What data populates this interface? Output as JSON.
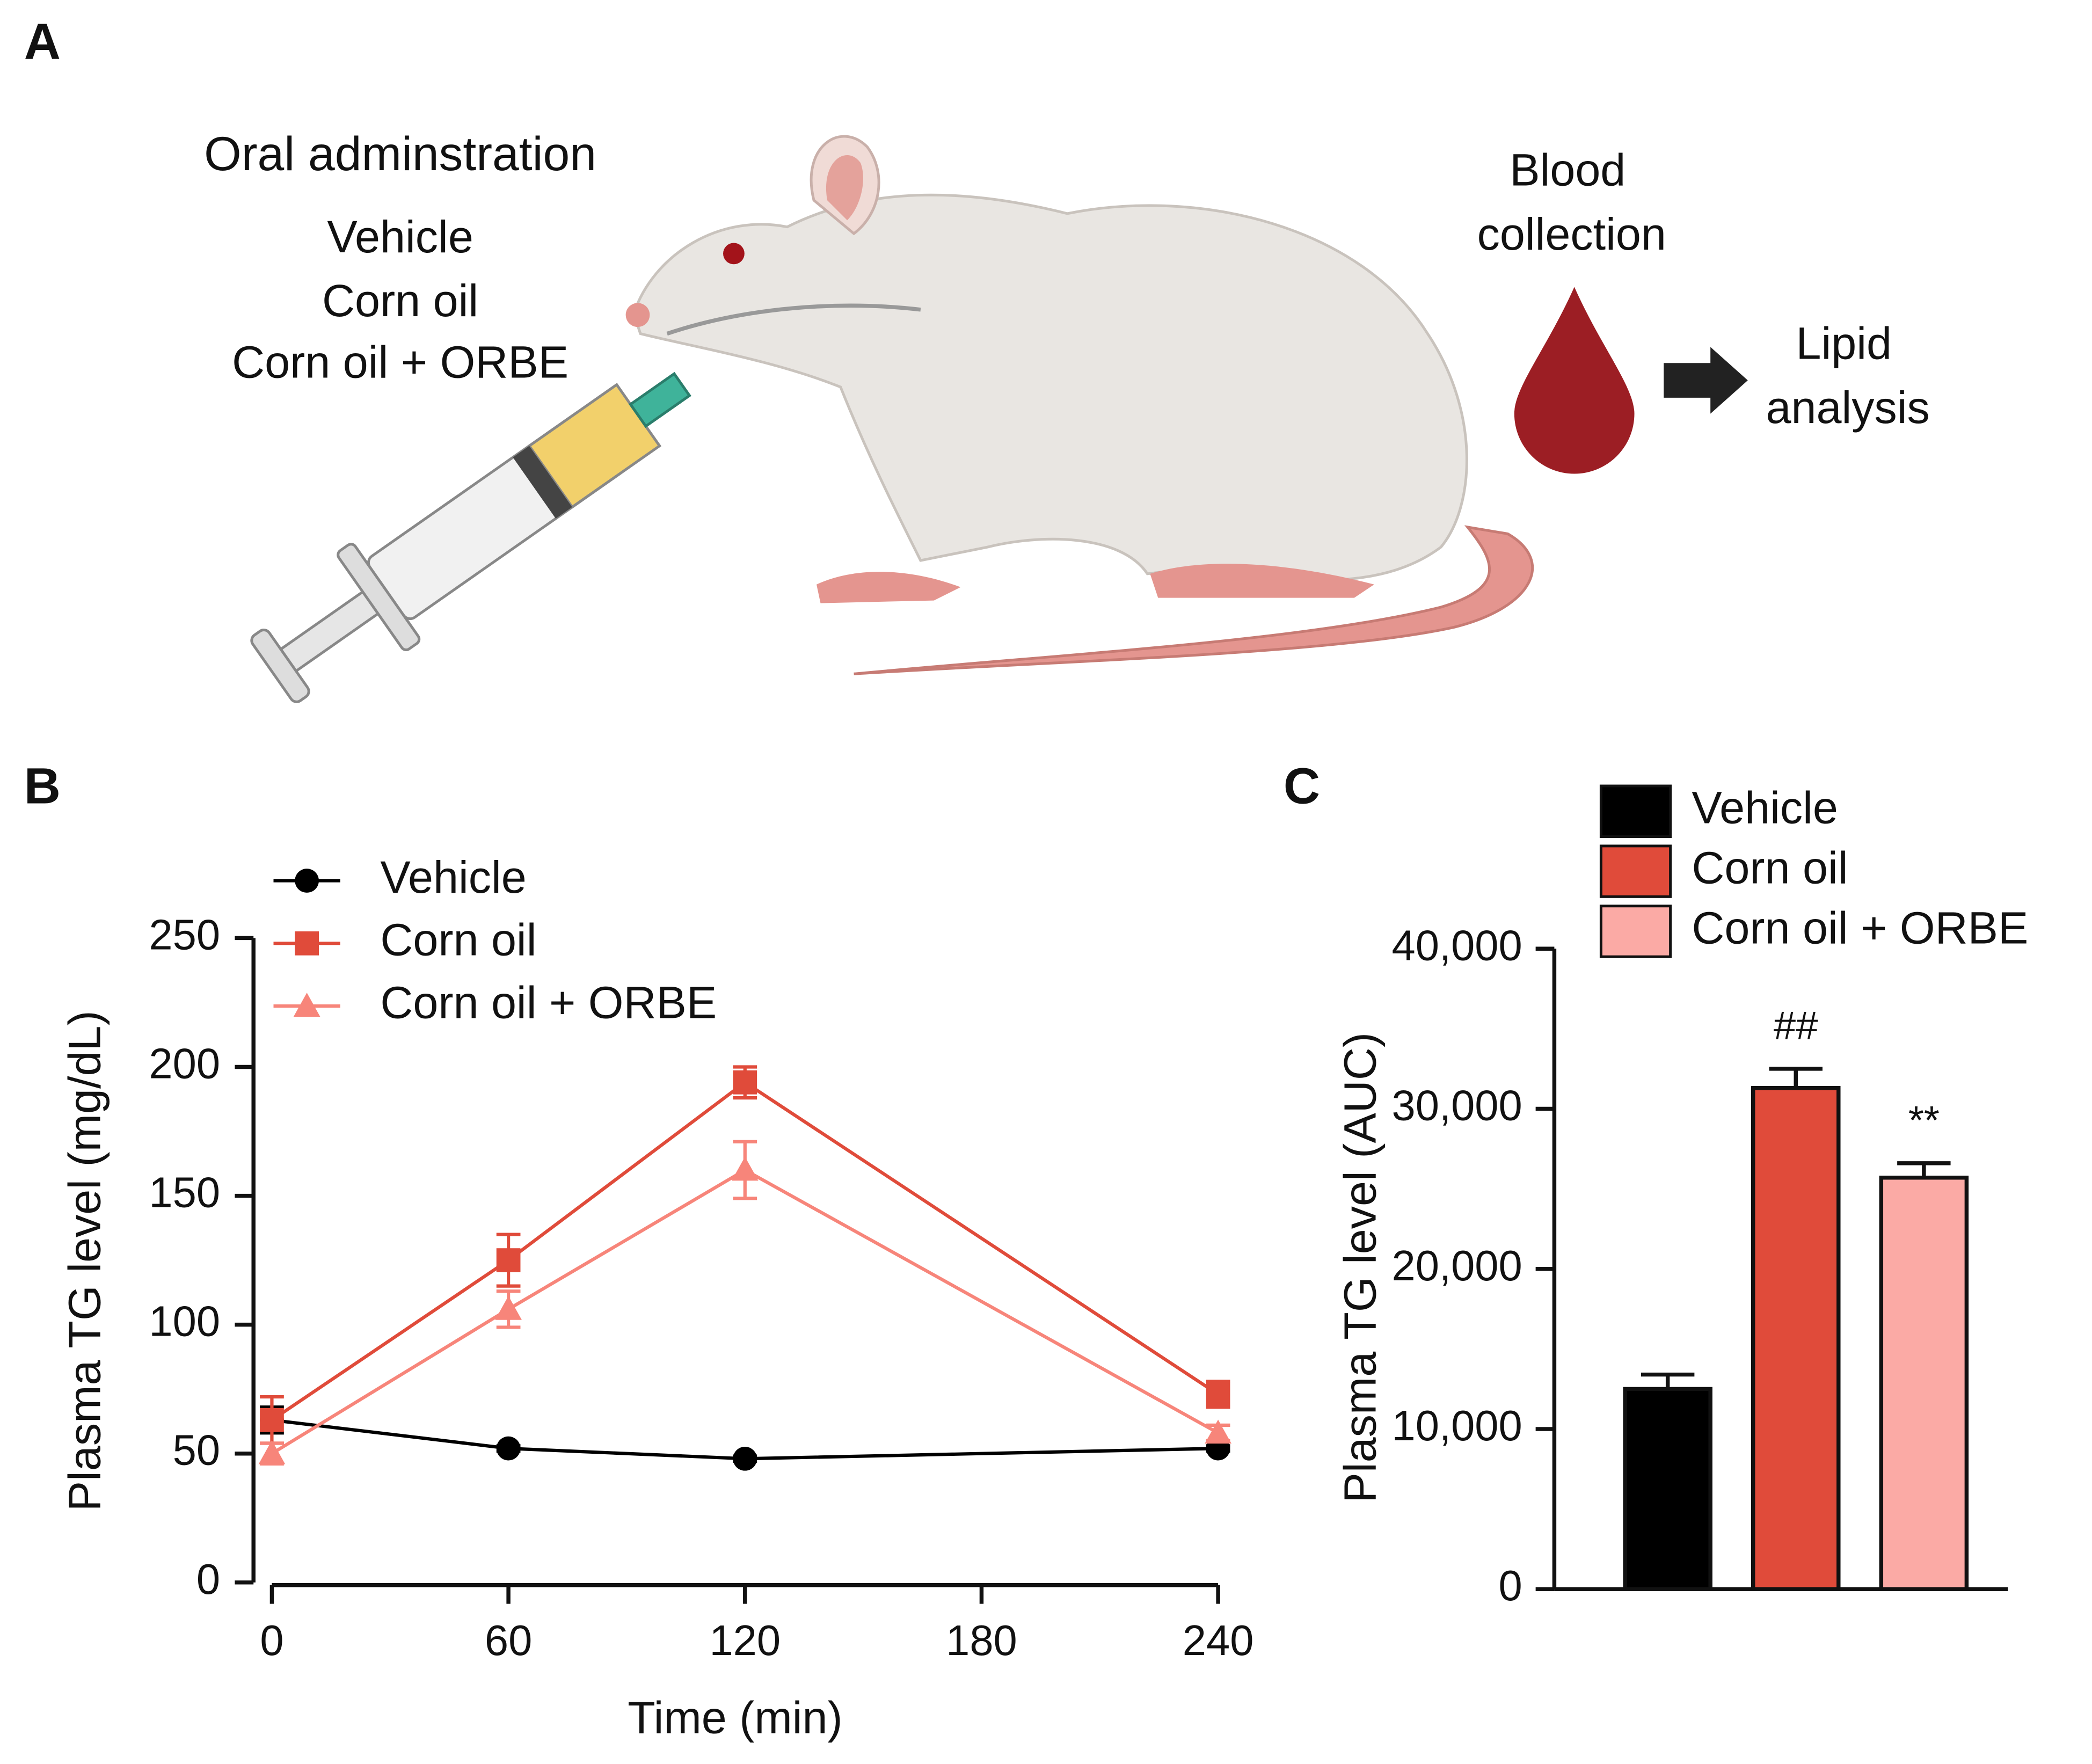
{
  "panel_labels": [
    "A",
    "B",
    "C"
  ],
  "panel_a": {
    "title": "Oral adminstration",
    "groups": [
      "Vehicle",
      "Corn oil",
      "Corn oil + ORBE"
    ],
    "blood_label": [
      "Blood",
      "collection"
    ],
    "analysis_label": [
      "Lipid",
      "analysis"
    ]
  },
  "chart_data": [
    {
      "type": "line",
      "x_label": "Time (min)",
      "y_label": "Plasma TG level (mg/dL)",
      "x": [
        0,
        60,
        120,
        240
      ],
      "xlim": [
        -5,
        240
      ],
      "xticks": [
        0,
        60,
        120,
        180,
        240
      ],
      "ylim": [
        0,
        250
      ],
      "yticks": [
        0,
        50,
        100,
        150,
        200,
        250
      ],
      "legend": "top-left",
      "series": [
        {
          "name": "Vehicle",
          "color": "#000000",
          "marker": "circle",
          "values": [
            63,
            52,
            48,
            52
          ],
          "errors": [
            5,
            1,
            1,
            1
          ]
        },
        {
          "name": "Corn oil",
          "color": "#e04b3a",
          "marker": "square",
          "values": [
            63,
            125,
            194,
            73
          ],
          "errors": [
            9,
            10,
            6,
            5
          ]
        },
        {
          "name": "Corn oil + ORBE",
          "color": "#f7857a",
          "marker": "triangle",
          "values": [
            50,
            106,
            160,
            58
          ],
          "errors": [
            4,
            7,
            11,
            3
          ]
        }
      ]
    },
    {
      "type": "bar",
      "y_label": "Plasma TG level (AUC)",
      "legend": "top-left",
      "categories": [
        "Vehicle",
        "Corn oil",
        "Corn oil + ORBE"
      ],
      "colors": [
        "#000000",
        "#e04b3a",
        "#fbaaa5"
      ],
      "values": [
        12500,
        31300,
        25700
      ],
      "errors": [
        900,
        1200,
        900
      ],
      "significance": [
        null,
        "##",
        "**"
      ],
      "ylim": [
        0,
        40000
      ],
      "yticks": [
        0,
        {
          "value": 10000,
          "label": "10,000"
        },
        {
          "value": 20000,
          "label": "20,000"
        },
        {
          "value": 30000,
          "label": "30,000"
        },
        {
          "value": 40000,
          "label": "40,000"
        }
      ]
    }
  ]
}
